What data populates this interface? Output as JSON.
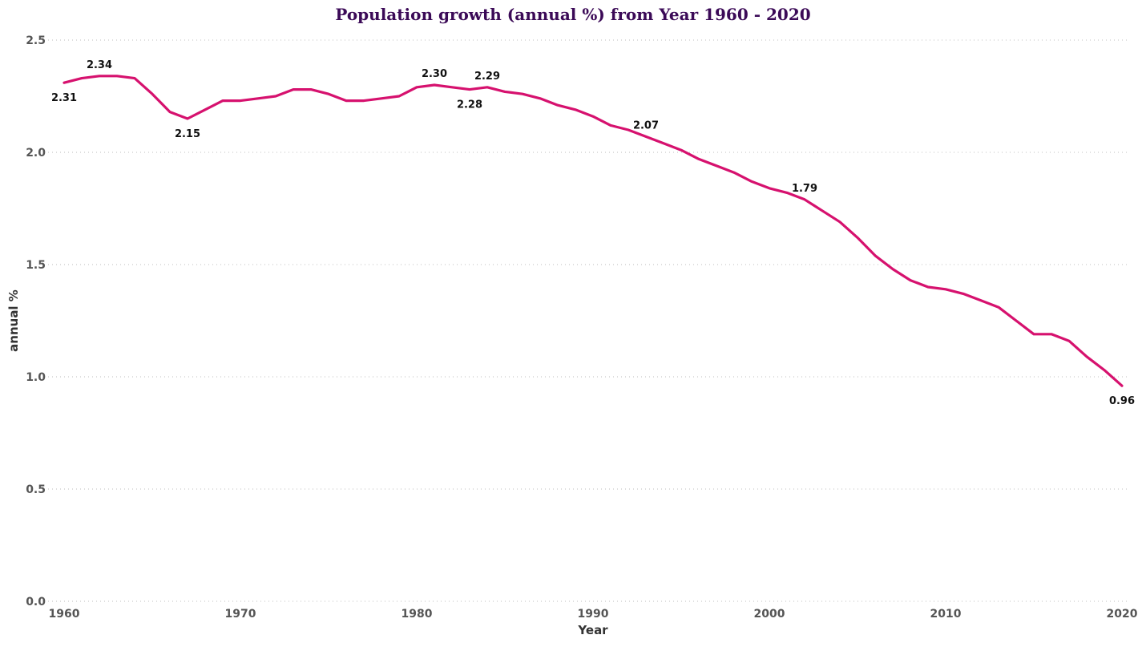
{
  "chart_data": {
    "type": "line",
    "title": "Population growth (annual %) from Year 1960 - 2020",
    "xlabel": "Year",
    "ylabel": "annual %",
    "xlim": [
      1960,
      2020
    ],
    "ylim": [
      0,
      2.5
    ],
    "x_ticks": [
      1960,
      1970,
      1980,
      1990,
      2000,
      2010,
      2020
    ],
    "y_ticks": [
      "0.0",
      "0.5",
      "1.0",
      "1.5",
      "2.0",
      "2.5"
    ],
    "grid": "horizontal dotted",
    "colors": {
      "line": "#d6116e",
      "title": "#3b0a57"
    },
    "series": [
      {
        "x": [
          1960,
          1961,
          1962,
          1963,
          1964,
          1965,
          1966,
          1967,
          1968,
          1969,
          1970,
          1971,
          1972,
          1973,
          1974,
          1975,
          1976,
          1977,
          1978,
          1979,
          1980,
          1981,
          1982,
          1983,
          1984,
          1985,
          1986,
          1987,
          1988,
          1989,
          1990,
          1991,
          1992,
          1993,
          1994,
          1995,
          1996,
          1997,
          1998,
          1999,
          2000,
          2001,
          2002,
          2003,
          2004,
          2005,
          2006,
          2007,
          2008,
          2009,
          2010,
          2011,
          2012,
          2013,
          2014,
          2015,
          2016,
          2017,
          2018,
          2019,
          2020
        ],
        "values": [
          2.31,
          2.33,
          2.34,
          2.34,
          2.33,
          2.26,
          2.18,
          2.15,
          2.19,
          2.23,
          2.23,
          2.24,
          2.25,
          2.28,
          2.28,
          2.26,
          2.23,
          2.23,
          2.24,
          2.25,
          2.29,
          2.3,
          2.29,
          2.28,
          2.29,
          2.27,
          2.26,
          2.24,
          2.21,
          2.19,
          2.16,
          2.12,
          2.1,
          2.07,
          2.04,
          2.01,
          1.97,
          1.94,
          1.91,
          1.87,
          1.84,
          1.82,
          1.79,
          1.74,
          1.69,
          1.62,
          1.54,
          1.48,
          1.43,
          1.4,
          1.39,
          1.37,
          1.34,
          1.31,
          1.25,
          1.19,
          1.19,
          1.16,
          1.09,
          1.03,
          0.96
        ]
      }
    ],
    "data_labels": [
      {
        "x": 1960,
        "y": 2.31,
        "text": "2.31",
        "pos": "below"
      },
      {
        "x": 1962,
        "y": 2.34,
        "text": "2.34",
        "pos": "above"
      },
      {
        "x": 1967,
        "y": 2.15,
        "text": "2.15",
        "pos": "below"
      },
      {
        "x": 1981,
        "y": 2.3,
        "text": "2.30",
        "pos": "above"
      },
      {
        "x": 1983,
        "y": 2.28,
        "text": "2.28",
        "pos": "below"
      },
      {
        "x": 1984,
        "y": 2.29,
        "text": "2.29",
        "pos": "above"
      },
      {
        "x": 1993,
        "y": 2.07,
        "text": "2.07",
        "pos": "above"
      },
      {
        "x": 2002,
        "y": 1.79,
        "text": "1.79",
        "pos": "above"
      },
      {
        "x": 2020,
        "y": 0.96,
        "text": "0.96",
        "pos": "below"
      }
    ]
  }
}
